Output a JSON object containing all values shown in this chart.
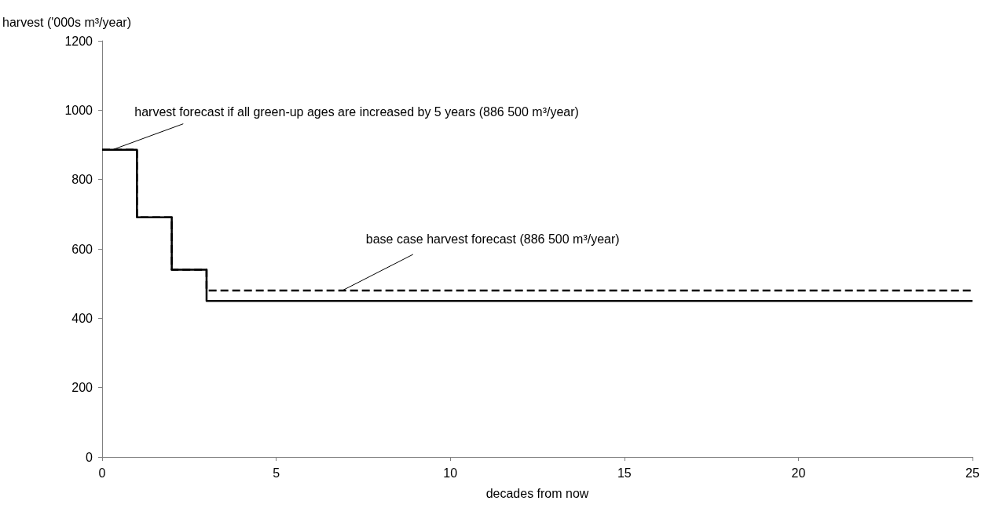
{
  "chart_data": {
    "type": "step",
    "xlabel": "decades from now",
    "ylabel": "harvest ('000s m³/year)",
    "xlim": [
      0,
      25
    ],
    "xticks": [
      0,
      5,
      10,
      15,
      20,
      25
    ],
    "ylim": [
      0,
      1200
    ],
    "yticks": [
      0,
      200,
      400,
      600,
      800,
      1000,
      1200
    ],
    "grid": false,
    "marker": "none",
    "series": [
      {
        "color": "#000000",
        "line_style": "solid",
        "x": [
          0,
          1,
          2,
          3,
          25
        ],
        "values": [
          886,
          691,
          540,
          450,
          450
        ]
      },
      {
        "color": "#000000",
        "line_style": "dashed",
        "x": [
          0,
          1,
          2,
          3,
          25
        ],
        "values": [
          886,
          691,
          540,
          480,
          480
        ]
      }
    ],
    "annotations": [
      {
        "text": "harvest forecast if all green-up ages are increased by 5 years (886 500 m³/year)",
        "x": 0.3,
        "y": 886
      },
      {
        "text": "base case harvest forecast (886 500 m³/year)",
        "x": 6.9,
        "y": 480
      }
    ]
  }
}
